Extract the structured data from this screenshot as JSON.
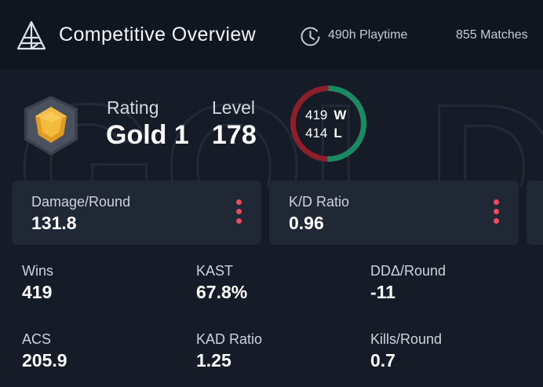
{
  "header": {
    "title": "Competitive Overview",
    "playtime": "490h Playtime",
    "matches": "855 Matches"
  },
  "watermark_text": "GOLD",
  "rank": {
    "rating_label": "Rating",
    "rating_value": "Gold 1",
    "level_label": "Level",
    "level_value": "178",
    "emblem": "gold-rank-emblem"
  },
  "record": {
    "wins": "419",
    "wins_suffix": "W",
    "losses": "414",
    "losses_suffix": "L",
    "win_fraction": 0.503,
    "win_color": "#1a8a63",
    "loss_color": "#8c1f2a"
  },
  "cards": [
    {
      "label": "Damage/Round",
      "value": "131.8"
    },
    {
      "label": "K/D Ratio",
      "value": "0.96"
    }
  ],
  "stats": [
    {
      "label": "Wins",
      "value": "419"
    },
    {
      "label": "KAST",
      "value": "67.8%"
    },
    {
      "label": "DDΔ/Round",
      "value": "-11"
    },
    {
      "label": "ACS",
      "value": "205.9"
    },
    {
      "label": "KAD Ratio",
      "value": "1.25"
    },
    {
      "label": "Kills/Round",
      "value": "0.7"
    }
  ],
  "colors": {
    "accent_red": "#ef4a5a",
    "background": "#161c27",
    "card": "#202836"
  }
}
